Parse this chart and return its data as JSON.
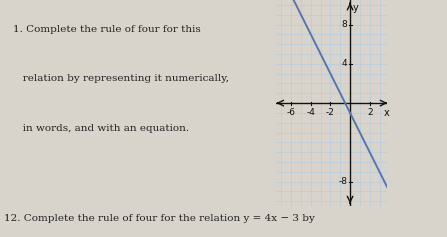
{
  "title_text_line1": "1. Complete the rule of four for this",
  "title_text_line2": "   relation by representing it numerically,",
  "title_text_line3": "   in words, and with an equation.",
  "bottom_text": "12. Complete the rule of four for the relation y = 4x − 3 by",
  "line_slope": -2,
  "line_intercept": -1,
  "x_min": -7.5,
  "x_max": 3.8,
  "y_min": -10.5,
  "y_max": 10.5,
  "x_ticks": [
    -6,
    -4,
    -2,
    2
  ],
  "y_ticks_pos": [
    4,
    8
  ],
  "y_ticks_neg": [
    -8
  ],
  "line_color": "#5577aa",
  "line_width": 1.4,
  "grid_color": "#b0c8e0",
  "grid_lw": 0.4,
  "axis_color": "#111111",
  "bg_color": "#d8d4cc",
  "graph_bg": "#ddeaf5",
  "text_color": "#222222",
  "xlabel": "x",
  "ylabel": "y",
  "tick_fontsize": 6.5,
  "label_fontsize": 7.5,
  "bottom_fontsize": 7.5
}
